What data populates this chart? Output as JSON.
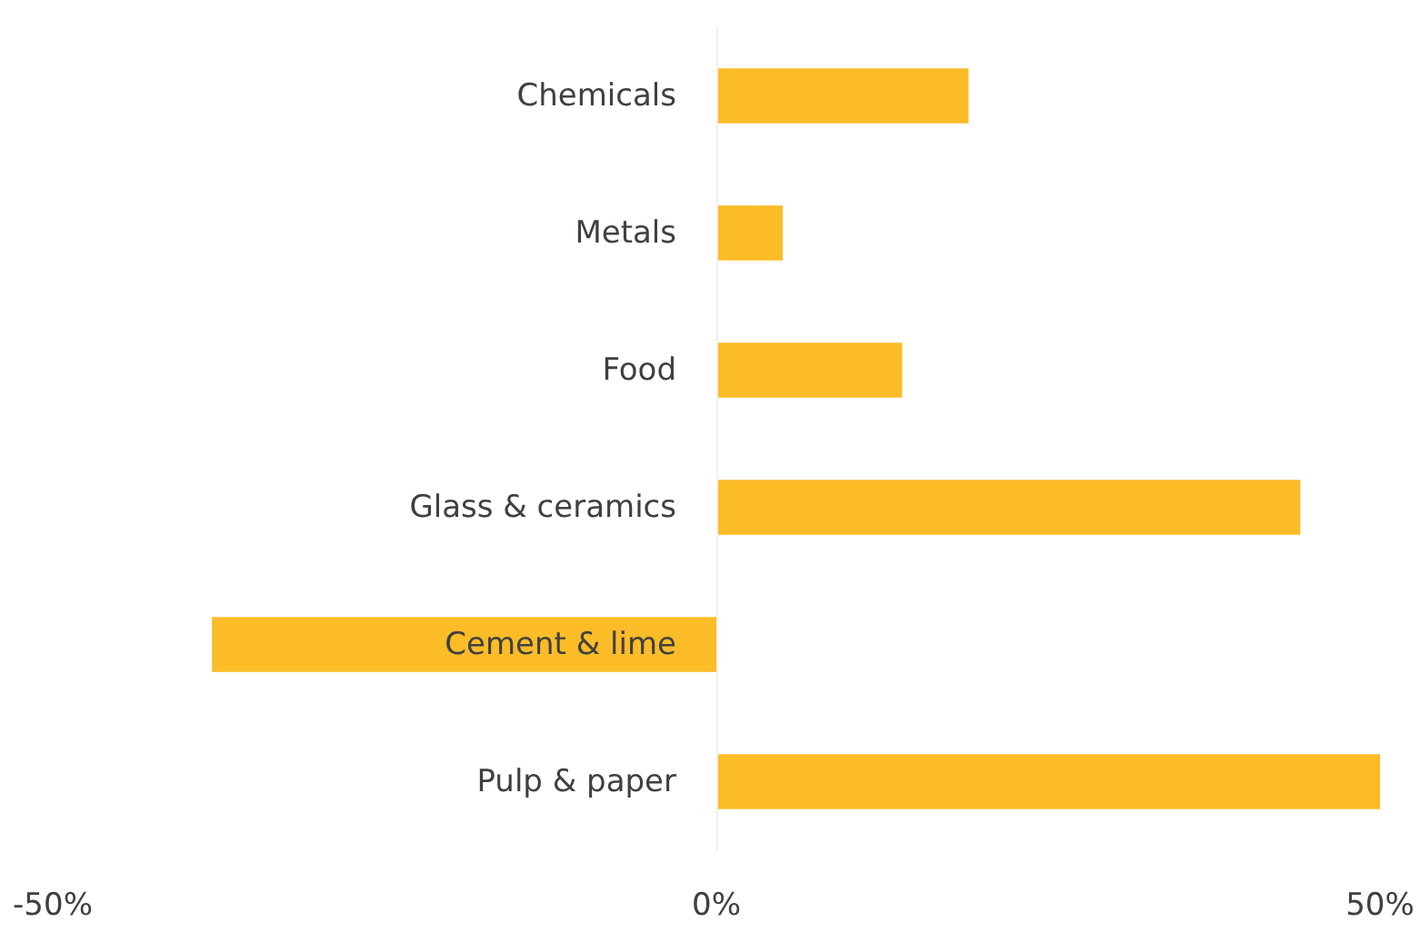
{
  "chart_data": {
    "type": "bar",
    "orientation": "horizontal",
    "categories": [
      "Chemicals",
      "Metals",
      "Food",
      "Glass & ceramics",
      "Cement & lime",
      "Pulp & paper"
    ],
    "values": [
      19,
      5,
      14,
      44,
      -38,
      50
    ],
    "color": "#fbbc28",
    "xlim": [
      -50,
      50
    ],
    "xticks": [
      {
        "value": -50,
        "label": "-50%"
      },
      {
        "value": 0,
        "label": "0%"
      },
      {
        "value": 50,
        "label": "50%"
      }
    ],
    "grid": false
  }
}
